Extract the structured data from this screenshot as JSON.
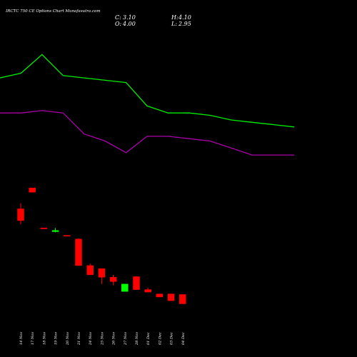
{
  "title": "IRCTC 750 CE Options Chart Munafasutra.com",
  "ohlc": {
    "close_label": "C:",
    "close_value": "3.10",
    "open_label": "O:",
    "open_value": "4.00",
    "high_label": "H:",
    "high_value": "4.10",
    "low_label": "L:",
    "low_value": "2.95"
  },
  "colors": {
    "background": "#000000",
    "up": "#00ff00",
    "down": "#ff0000",
    "upper_line": "#00ee00",
    "lower_line": "#aa00aa",
    "text": "#ffffff"
  },
  "chart_data": {
    "type": "candlestick",
    "title": "IRCTC 750 CE Options Chart Munafasutra.com",
    "categories": [
      "14 Nov",
      "17 Nov",
      "18 Nov",
      "19 Nov",
      "20 Nov",
      "21 Nov",
      "24 Nov",
      "25 Nov",
      "26 Nov",
      "27 Nov",
      "28 Nov",
      "01 Dec",
      "02 Dec",
      "03 Dec",
      "04 Dec"
    ],
    "candles": [
      {
        "date": "14 Nov",
        "open": 13.5,
        "high": 14.4,
        "low": 11.0,
        "close": 11.6
      },
      {
        "date": "17 Nov",
        "open": 16.9,
        "high": 16.9,
        "low": 16.2,
        "close": 16.2
      },
      {
        "date": "18 Nov",
        "open": 10.4,
        "high": 10.4,
        "low": 10.4,
        "close": 10.4
      },
      {
        "date": "19 Nov",
        "open": 9.8,
        "high": 10.4,
        "low": 9.7,
        "close": 10.0
      },
      {
        "date": "20 Nov",
        "open": 9.2,
        "high": 9.2,
        "low": 9.2,
        "close": 9.2
      },
      {
        "date": "21 Nov",
        "open": 8.6,
        "high": 8.7,
        "low": 4.3,
        "close": 4.3
      },
      {
        "date": "24 Nov",
        "open": 4.3,
        "high": 4.6,
        "low": 2.8,
        "close": 2.8
      },
      {
        "date": "25 Nov",
        "open": 3.8,
        "high": 3.8,
        "low": 1.3,
        "close": 2.4
      },
      {
        "date": "26 Nov",
        "open": 2.4,
        "high": 2.8,
        "low": 1.1,
        "close": 1.7
      },
      {
        "date": "27 Nov",
        "open": 0.1,
        "high": 1.3,
        "low": 0.1,
        "close": 1.3
      },
      {
        "date": "28 Nov",
        "open": 2.5,
        "high": 2.5,
        "low": 0.4,
        "close": 0.4
      },
      {
        "date": "01 Dec",
        "open": 0.4,
        "high": 0.7,
        "low": 0.0,
        "close": 0.0
      },
      {
        "date": "02 Dec",
        "open": -0.3,
        "high": -0.3,
        "low": -0.8,
        "close": -0.8
      },
      {
        "date": "03 Dec",
        "open": -0.3,
        "high": -0.3,
        "low": -1.4,
        "close": -1.4
      },
      {
        "date": "04 Dec",
        "open": 4.0,
        "high": 4.1,
        "low": 2.95,
        "close": 3.1
      }
    ],
    "upper_line_y": [
      9.7,
      9.72,
      9.8,
      9.71,
      9.7,
      9.69,
      9.68,
      9.58,
      9.55,
      9.55,
      9.54,
      9.52,
      9.51,
      9.5,
      9.49
    ],
    "lower_line_y": [
      9.55,
      9.55,
      9.56,
      9.55,
      9.46,
      9.43,
      9.38,
      9.45,
      9.45,
      9.44,
      9.43,
      9.4,
      9.37,
      9.37,
      9.37
    ],
    "grid": false,
    "legend": "none"
  }
}
